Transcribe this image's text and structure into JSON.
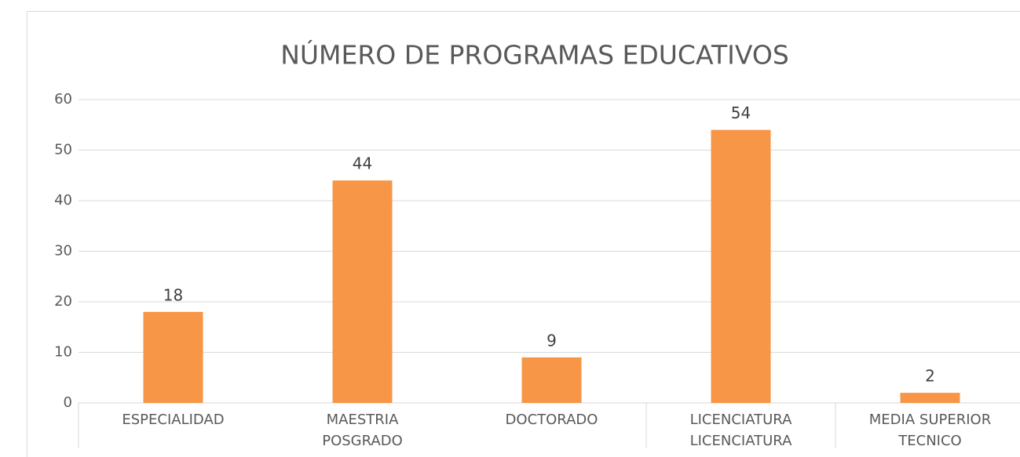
{
  "chart_data": {
    "type": "bar",
    "title": "NÚMERO DE PROGRAMAS EDUCATIVOS",
    "categories": [
      [
        "ESPECIALIDAD"
      ],
      [
        "MAESTRIA",
        "POSGRADO"
      ],
      [
        "DOCTORADO"
      ],
      [
        "LICENCIATURA",
        "LICENCIATURA"
      ],
      [
        "MEDIA SUPERIOR",
        "TECNICO"
      ]
    ],
    "values": [
      18,
      44,
      9,
      54,
      2
    ],
    "color": "#f79646",
    "ylim": [
      0,
      60
    ],
    "yticks": [
      0,
      10,
      20,
      30,
      40,
      50,
      60
    ],
    "grid": true
  }
}
